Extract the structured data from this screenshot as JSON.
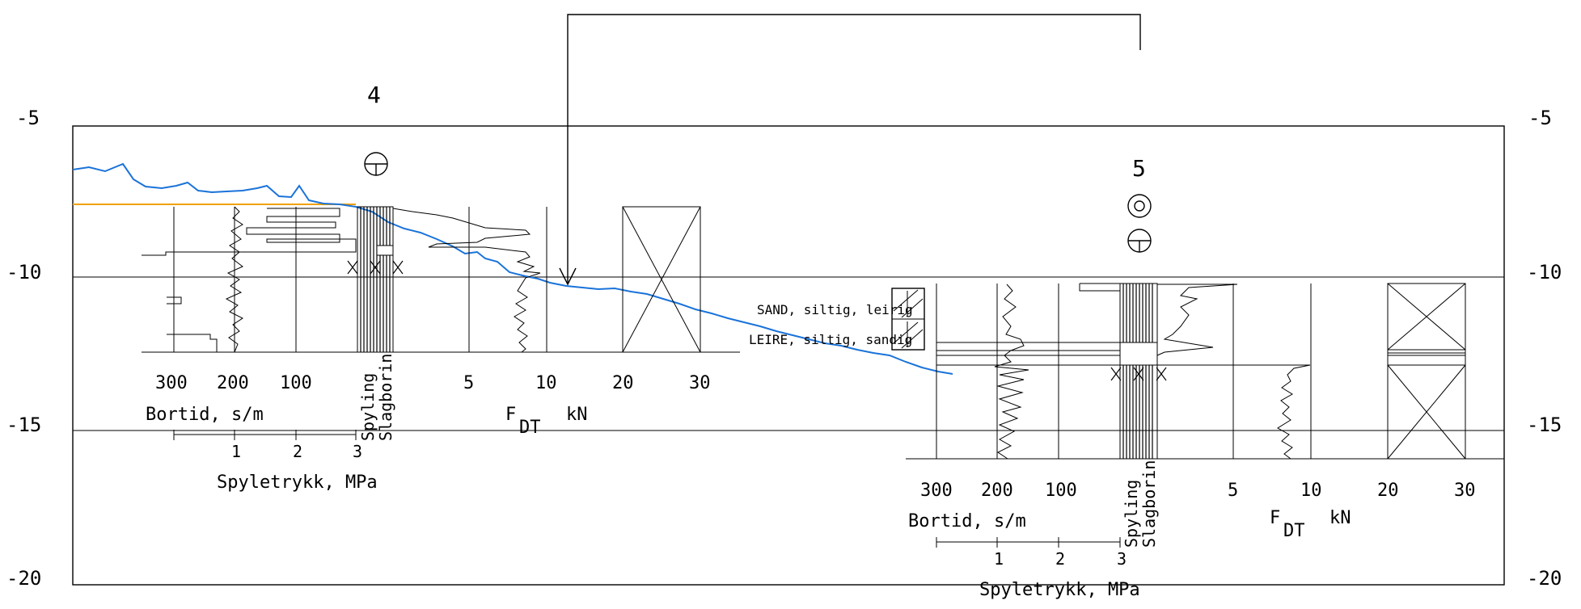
{
  "elevation_axis": {
    "left_labels": [
      "-5",
      "-10",
      "-15",
      "-20"
    ],
    "right_labels": [
      "-5",
      "-10",
      "-15",
      "-20"
    ]
  },
  "legend": {
    "sand": "SAND, siltig, leirig",
    "leire": "LEIRE, siltig, sandig"
  },
  "boreholes": [
    {
      "id": "4",
      "bortid_ticks": [
        "300",
        "200",
        "100"
      ],
      "bortid_label": "Bortid, s/m",
      "spyletrykk_ticks": [
        "1",
        "2",
        "3"
      ],
      "spyletrykk_label": "Spyletrykk, MPa",
      "spyling_label": "Spyling",
      "slagboring_label": "Slagborin",
      "force_ticks": [
        "5",
        "10",
        "20",
        "30"
      ],
      "force_label_f": "F",
      "force_label_sub": "DT",
      "force_unit": "kN"
    },
    {
      "id": "5",
      "bortid_ticks": [
        "300",
        "200",
        "100"
      ],
      "bortid_label": "Bortid, s/m",
      "spyletrykk_ticks": [
        "1",
        "2",
        "3"
      ],
      "spyletrykk_label": "Spyletrykk, MPa",
      "spyling_label": "Spyling",
      "slagboring_label": "Slagborin",
      "force_ticks": [
        "5",
        "10",
        "20",
        "30"
      ],
      "force_label_f": "F",
      "force_label_sub": "DT",
      "force_unit": "kN"
    }
  ],
  "colors": {
    "terrain": "#1a73d9",
    "water_level": "#f0a000",
    "lines": "#000000"
  }
}
